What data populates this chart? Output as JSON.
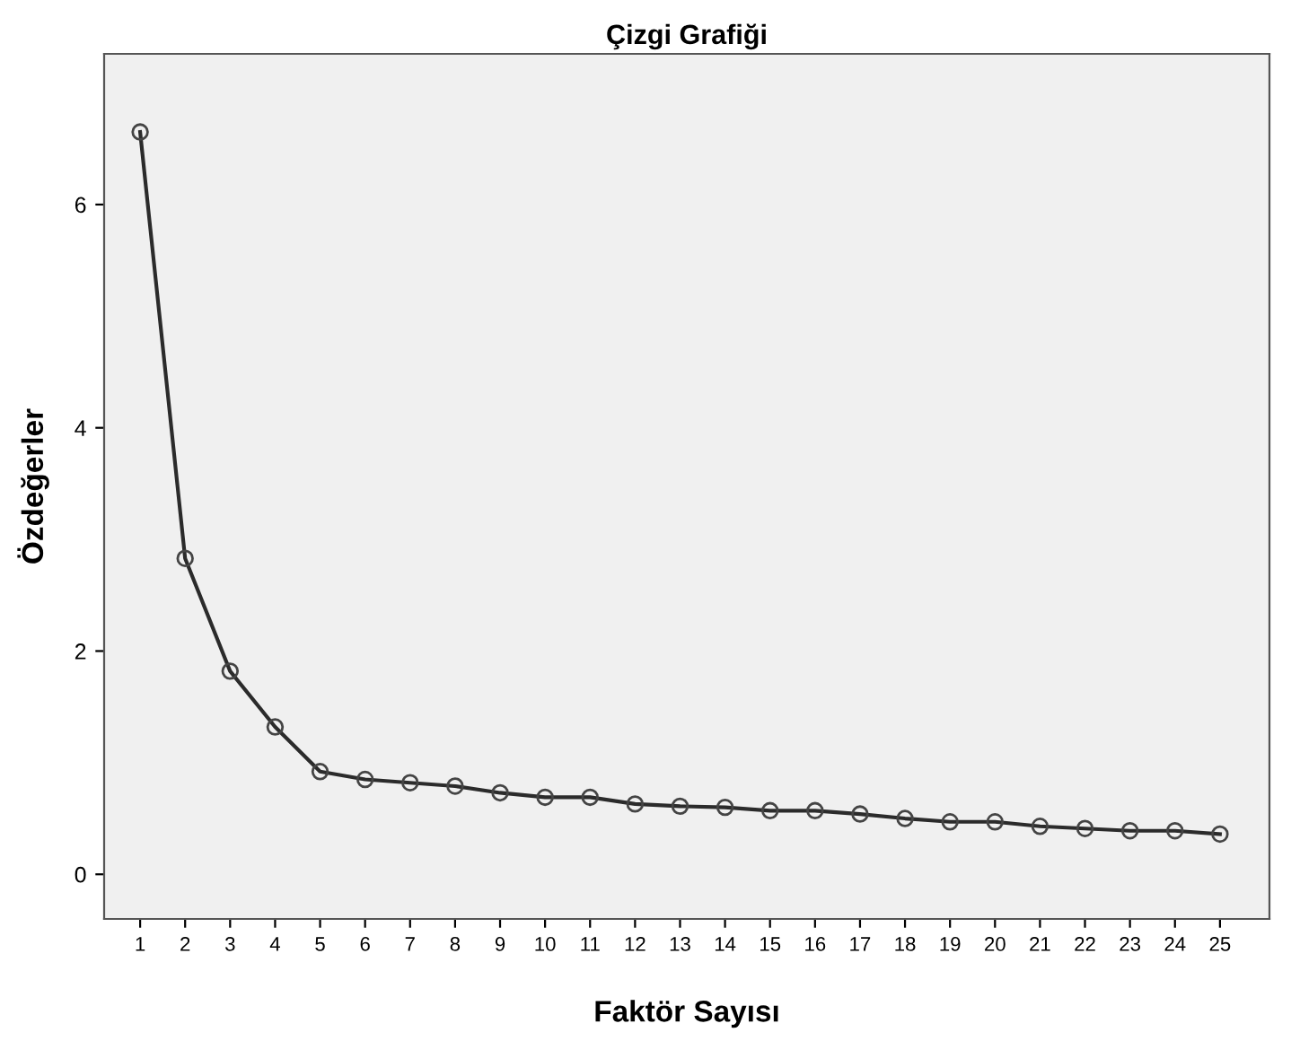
{
  "chart_data": {
    "type": "line",
    "title": "Çizgi Grafiği",
    "xlabel": "Faktör Sayısı",
    "ylabel": "Özdeğerler",
    "categories": [
      "1",
      "2",
      "3",
      "4",
      "5",
      "6",
      "7",
      "8",
      "9",
      "10",
      "11",
      "12",
      "13",
      "14",
      "15",
      "16",
      "17",
      "18",
      "19",
      "20",
      "21",
      "22",
      "23",
      "24",
      "25"
    ],
    "series": [
      {
        "color": "#2b2b2b",
        "values": [
          6.65,
          2.83,
          1.82,
          1.32,
          0.92,
          0.85,
          0.82,
          0.79,
          0.73,
          0.69,
          0.69,
          0.63,
          0.61,
          0.6,
          0.57,
          0.57,
          0.54,
          0.5,
          0.47,
          0.47,
          0.43,
          0.41,
          0.39,
          0.39,
          0.36
        ]
      }
    ],
    "ylim": [
      -0.4,
      7.35
    ],
    "yticks": [
      0,
      2,
      4,
      6
    ],
    "marker": "circle",
    "line_style": "solid"
  }
}
